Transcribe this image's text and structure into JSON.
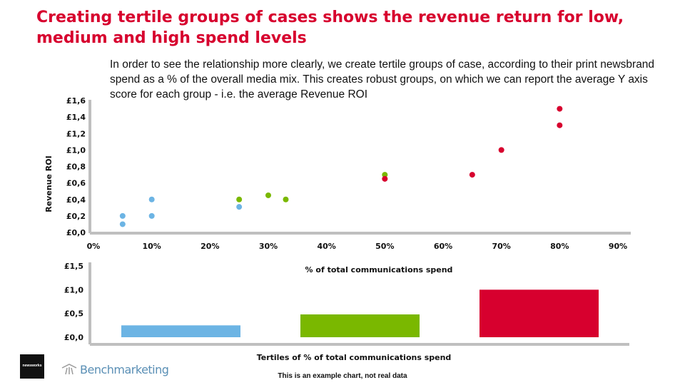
{
  "title": "Creating tertile groups of cases shows the revenue return for low, medium and high spend levels",
  "intro": "In order to see the relationship more clearly, we create tertile groups of case, according to their print newsbrand spend as a % of the overall media mix.  This creates robust groups, on which we can report the average Y axis score for each group  - i.e. the average Revenue ROI",
  "footnote": "This is an example chart, not real data",
  "logos": {
    "newsworks": "newsworks",
    "benchmarking": "Benchmarketing"
  },
  "colors": {
    "low": "#6cb4e4",
    "medium": "#7ab800",
    "high": "#d7002e",
    "title": "#d7002e",
    "axis": "#bfbfbf"
  },
  "chart_data": [
    {
      "type": "scatter",
      "title": "",
      "xlabel": "% of total communications spend",
      "ylabel": "Revenue ROI",
      "xlim": [
        0,
        90
      ],
      "ylim": [
        0,
        1.6
      ],
      "xticks": [
        "0%",
        "10%",
        "20%",
        "30%",
        "40%",
        "50%",
        "60%",
        "70%",
        "80%",
        "90%"
      ],
      "yticks": [
        "£0,0",
        "£0,2",
        "£0,4",
        "£0,6",
        "£0,8",
        "£1,0",
        "£1,2",
        "£1,4",
        "£1,6"
      ],
      "series": [
        {
          "color": "#6cb4e4",
          "points": [
            [
              5,
              0.1
            ],
            [
              5,
              0.2
            ],
            [
              10,
              0.2
            ],
            [
              10,
              0.4
            ],
            [
              25,
              0.31
            ]
          ]
        },
        {
          "color": "#7ab800",
          "points": [
            [
              25,
              0.4
            ],
            [
              30,
              0.45
            ],
            [
              33,
              0.4
            ],
            [
              50,
              0.7
            ]
          ]
        },
        {
          "color": "#d7002e",
          "points": [
            [
              50,
              0.65
            ],
            [
              65,
              0.7
            ],
            [
              70,
              1.0
            ],
            [
              80,
              1.3
            ],
            [
              80,
              1.5
            ]
          ]
        }
      ]
    },
    {
      "type": "bar",
      "title": "",
      "xlabel": "Tertiles of % of total communications spend",
      "ylabel": "",
      "ylim": [
        0,
        1.5
      ],
      "yticks": [
        "£0,0",
        "£0,5",
        "£1,0",
        "£1,5"
      ],
      "categories": [
        "",
        "",
        ""
      ],
      "values": [
        0.25,
        0.48,
        1.0
      ],
      "colors": [
        "#6cb4e4",
        "#7ab800",
        "#d7002e"
      ]
    }
  ]
}
